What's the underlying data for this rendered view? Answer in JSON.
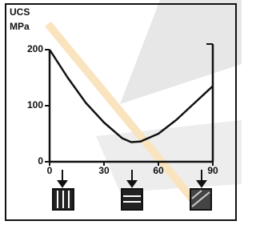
{
  "chart_data": {
    "type": "line",
    "ylabel": "UCS",
    "yunit": "MPa",
    "x": [
      0,
      10,
      20,
      30,
      40,
      45,
      50,
      60,
      70,
      80,
      90
    ],
    "values": [
      200,
      150,
      105,
      70,
      42,
      35,
      36,
      50,
      75,
      105,
      135
    ],
    "color": "#111111",
    "xlim": [
      0,
      90
    ],
    "xticks": [
      0,
      30,
      60,
      90
    ],
    "ylim": [
      0,
      200
    ],
    "yticks": [
      0,
      100,
      200
    ]
  }
}
